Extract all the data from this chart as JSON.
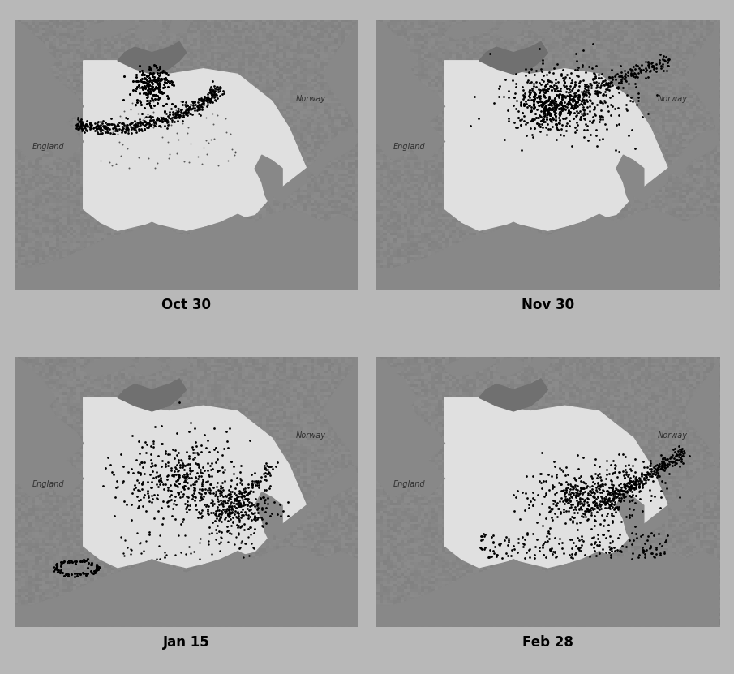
{
  "figure_bg": "#c8c8c8",
  "panel_bg": "#d0d0d0",
  "sea_color": "#e8e8e8",
  "land_color": "#909090",
  "land_dark": "#787878",
  "particle_color": "#000000",
  "label_fontsize": 12,
  "label_fontweight": "bold",
  "england_label": "England",
  "norway_label": "Norway",
  "labels": [
    "Oct 30",
    "Nov 30",
    "Jan 15",
    "Feb 28"
  ],
  "white_bg_panels": [
    0,
    1
  ],
  "gray_bg_panels": [
    2,
    3
  ]
}
